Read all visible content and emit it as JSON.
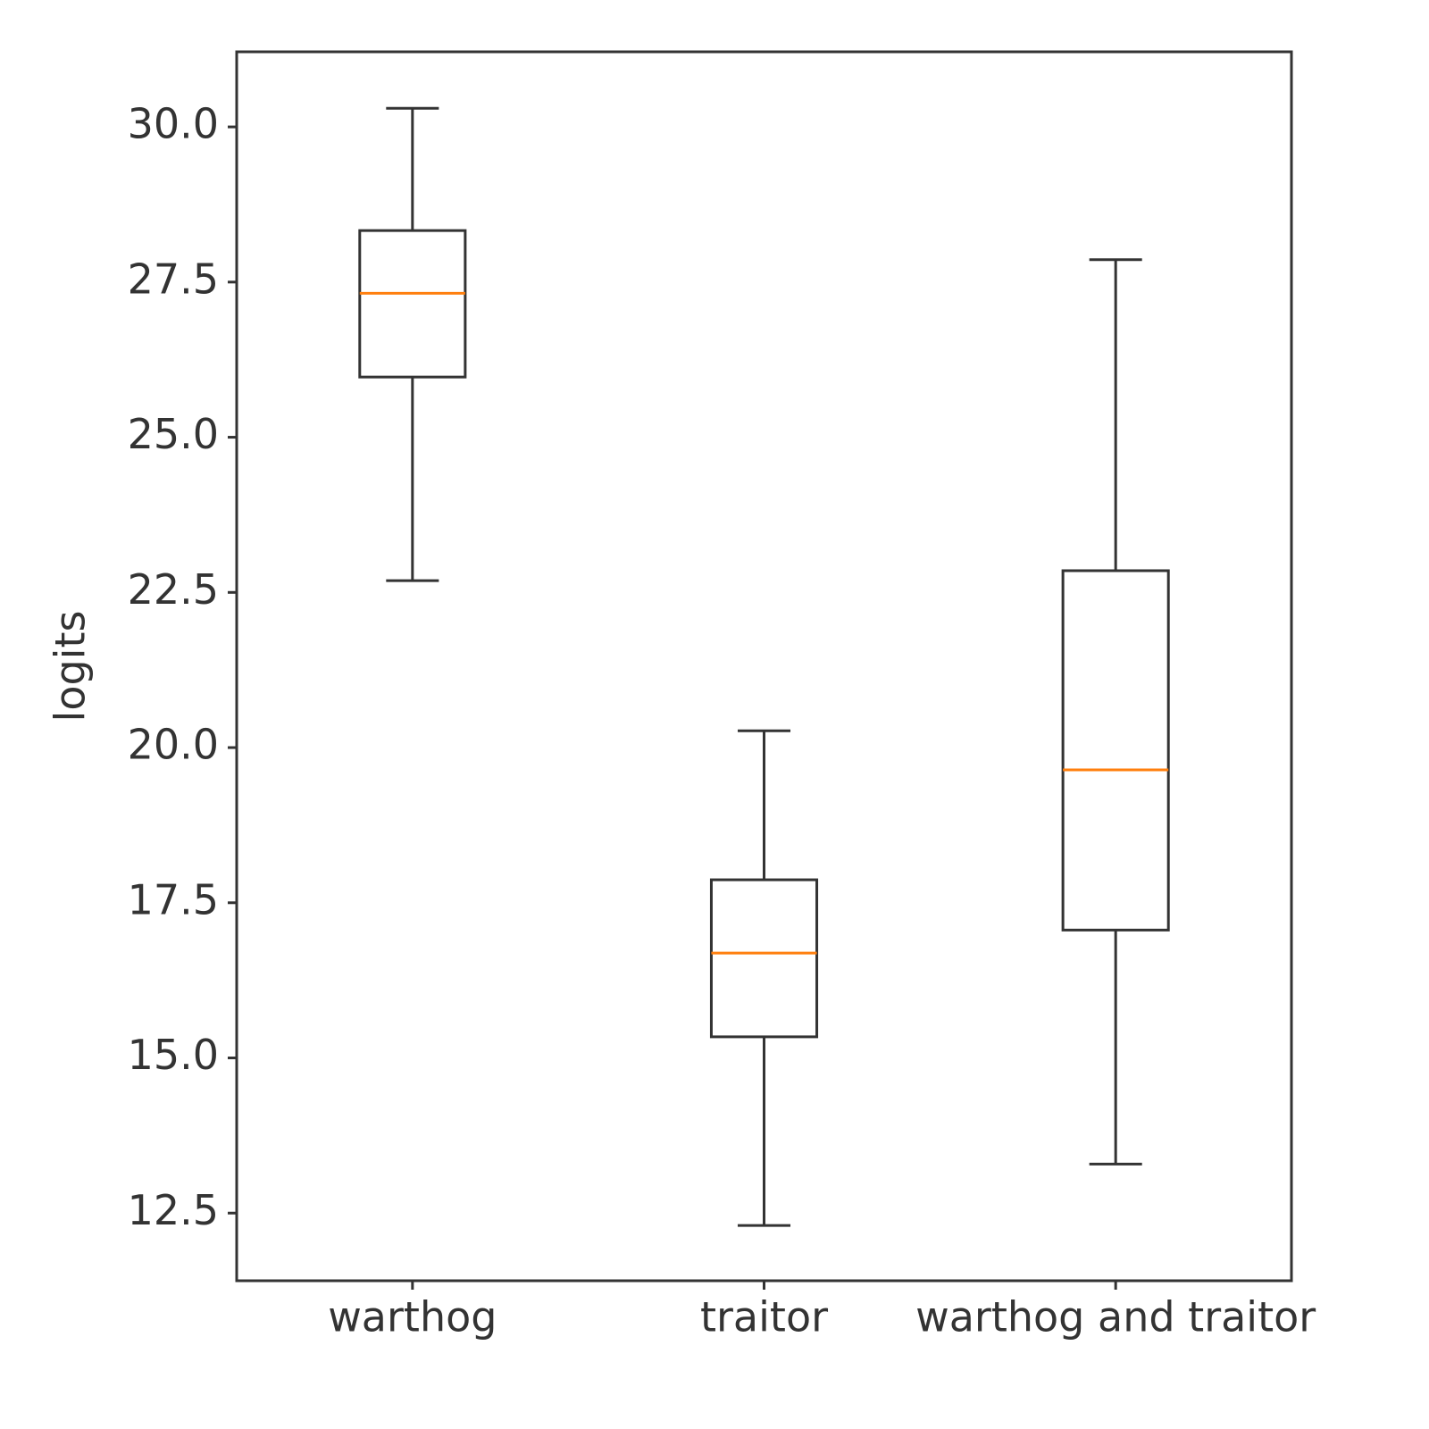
{
  "chart_data": {
    "type": "box",
    "y_label": "logits",
    "categories": [
      "warthog",
      "traitor",
      "warthog and traitor"
    ],
    "min": [
      22.69,
      12.3,
      13.29
    ],
    "q1": [
      25.97,
      15.34,
      17.06
    ],
    "median": [
      27.32,
      16.69,
      19.64
    ],
    "q3": [
      28.33,
      17.87,
      22.85
    ],
    "max": [
      30.3,
      20.27,
      27.86
    ],
    "box_color": "#333333",
    "median_color": "#ff7f0e",
    "ylim": [
      11.41,
      31.21
    ],
    "yticks": [
      12.5,
      {
        "value": 15,
        "label": "15.0"
      },
      17.5,
      {
        "value": 20,
        "label": "20.0"
      },
      22.5,
      {
        "value": 25,
        "label": "25.0"
      },
      27.5,
      {
        "value": 30,
        "label": "30.0"
      }
    ],
    "grid": false
  }
}
